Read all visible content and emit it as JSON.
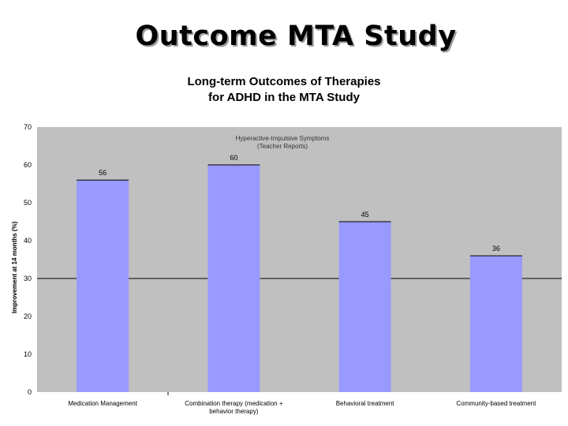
{
  "slide": {
    "title": "Outcome MTA Study"
  },
  "chart_data": {
    "type": "bar",
    "title_lines": [
      "Long-term Outcomes of Therapies",
      "for ADHD in the MTA Study"
    ],
    "annotation_lines": [
      "Hyperactive-Impulsive Symptoms",
      "(Teacher Reports)"
    ],
    "ylabel": "Improvement at 14 months (%)",
    "xlabel": "",
    "ylim": [
      0,
      70
    ],
    "yticks": [
      0,
      10,
      20,
      30,
      40,
      50,
      60,
      70
    ],
    "reference_line": 30,
    "grid": false,
    "categories": [
      [
        "Medication Management"
      ],
      [
        "Combination therapy (medication +",
        "behavior therapy)"
      ],
      [
        "Behavioral treatment"
      ],
      [
        "Community-based treatment"
      ]
    ],
    "values": [
      56,
      60,
      45,
      36
    ],
    "data_labels": [
      "56",
      "60",
      "45",
      "36"
    ],
    "colors": {
      "plot_bg": "#c0c0c0",
      "bar": "#9999ff",
      "bar_edge": "#000000"
    }
  }
}
